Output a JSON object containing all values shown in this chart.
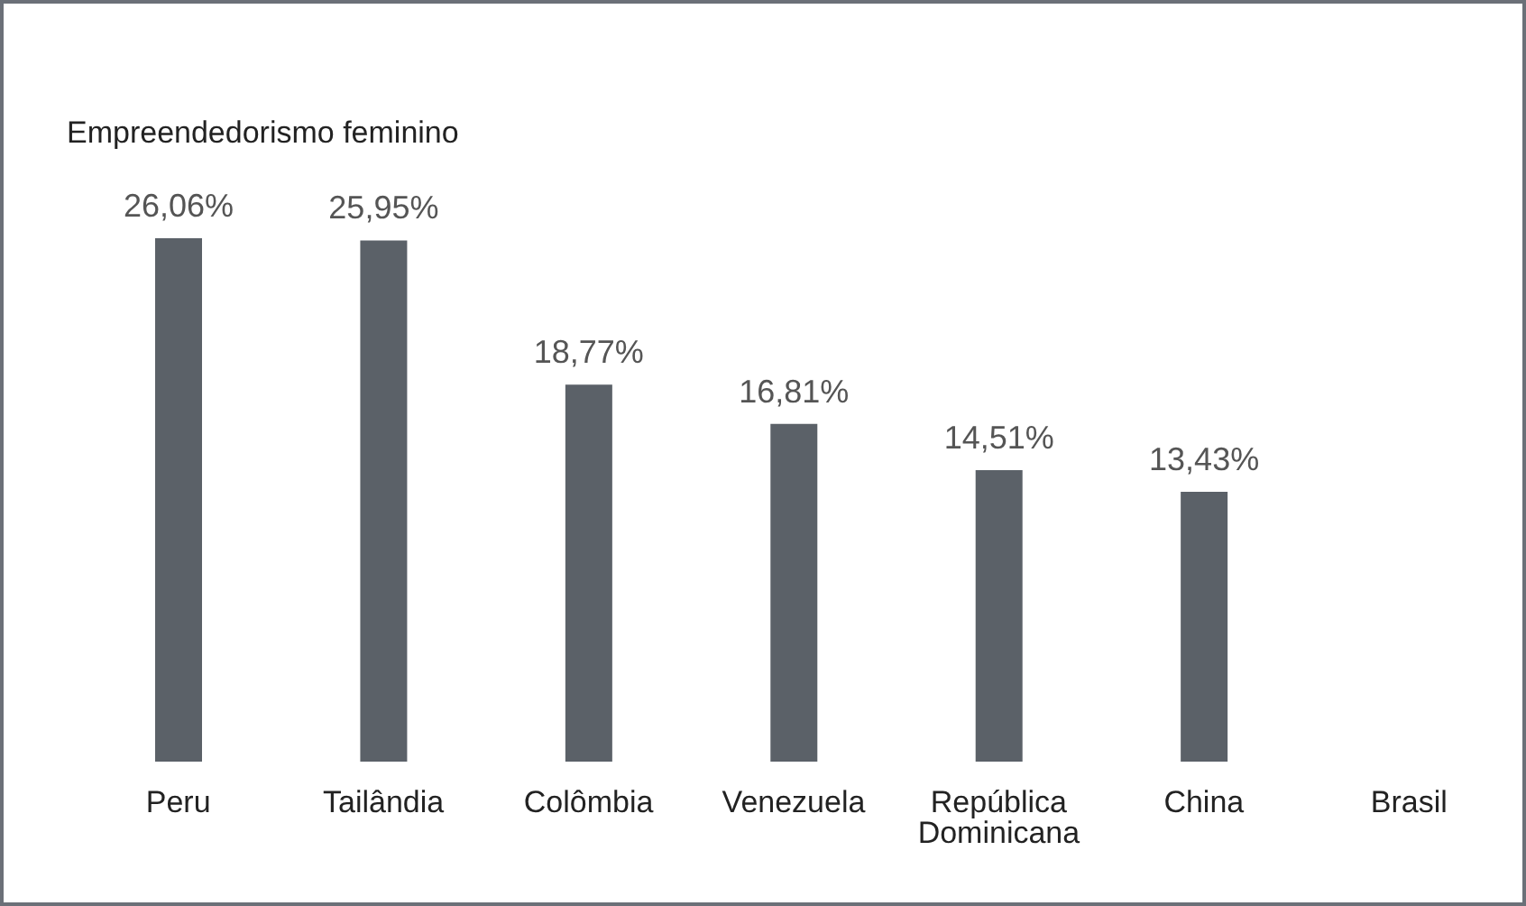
{
  "chart_data": {
    "type": "bar",
    "title": "Empreendedorismo feminino",
    "categories": [
      "Peru",
      "Tailândia",
      "Colômbia",
      "Venezuela",
      "República Dominicana",
      "China",
      "Brasil"
    ],
    "values": [
      26.06,
      25.95,
      18.77,
      16.81,
      14.51,
      13.43,
      null
    ],
    "value_labels": [
      "26,06%",
      "25,95%",
      "18,77%",
      "16,81%",
      "14,51%",
      "13,43%",
      null
    ],
    "color": "#5b6168",
    "grid": false,
    "legend": false
  }
}
